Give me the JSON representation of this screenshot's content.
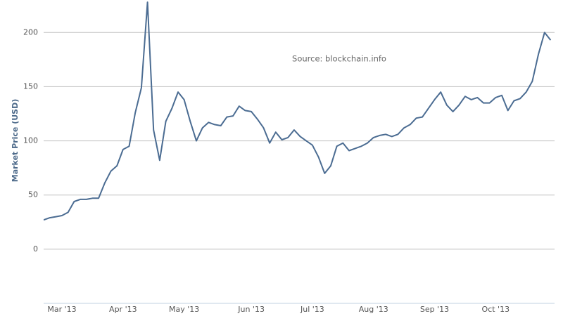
{
  "chart_data": {
    "type": "line",
    "y_label": "Market Price (USD)",
    "annotation": "Source: blockchain.info",
    "categories": [
      null,
      null,
      null,
      "Mar '13",
      null,
      null,
      null,
      null,
      null,
      null,
      null,
      null,
      null,
      "Apr '13",
      null,
      null,
      null,
      null,
      null,
      null,
      null,
      null,
      null,
      "May '13",
      null,
      null,
      null,
      null,
      null,
      null,
      null,
      null,
      null,
      null,
      "Jun '13",
      null,
      null,
      null,
      null,
      null,
      null,
      null,
      null,
      null,
      "Jul '13",
      null,
      null,
      null,
      null,
      null,
      null,
      null,
      null,
      null,
      "Aug '13",
      null,
      null,
      null,
      null,
      null,
      null,
      null,
      null,
      null,
      "Sep '13",
      null,
      null,
      null,
      null,
      null,
      null,
      null,
      null,
      null,
      "Oct '13",
      null,
      null,
      null,
      null,
      null,
      null,
      null,
      null,
      null
    ],
    "series": [
      {
        "name": "Market Price",
        "color": "#4b6c92",
        "values": [
          27,
          29,
          30,
          31,
          34,
          44,
          46,
          46,
          47,
          47,
          61,
          72,
          77,
          92,
          95,
          126,
          149,
          228,
          110,
          82,
          118,
          130,
          145,
          138,
          118,
          100,
          112,
          117,
          115,
          114,
          122,
          123,
          132,
          128,
          127,
          120,
          112,
          98,
          108,
          101,
          103,
          110,
          104,
          100,
          96,
          85,
          70,
          77,
          95,
          98,
          91,
          93,
          95,
          98,
          103,
          105,
          106,
          104,
          106,
          112,
          115,
          121,
          122,
          130,
          138,
          145,
          133,
          127,
          133,
          141,
          138,
          140,
          135,
          135,
          140,
          142,
          128,
          137,
          139,
          145,
          155,
          180,
          200,
          193
        ]
      }
    ],
    "ylim": [
      -50,
      230
    ],
    "yticks": [
      0,
      50,
      100,
      150,
      200
    ],
    "grid": true
  }
}
